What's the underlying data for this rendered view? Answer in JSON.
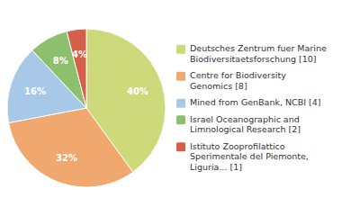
{
  "chart_data": {
    "type": "pie",
    "categories": [
      "Deutsches Zentrum fuer Marine\nBiodiversitaetsforschung [10]",
      "Centre for Biodiversity\nGenomics [8]",
      "Mined from GenBank, NCBI [4]",
      "Israel Oceanographic and\nLimnological Research [2]",
      "Istituto Zooprofilattico\nSperimentale del Piemonte,\nLiguria... [1]"
    ],
    "values": [
      40,
      32,
      16,
      8,
      4
    ],
    "value_labels": [
      "40%",
      "32%",
      "16%",
      "8%",
      "4%"
    ],
    "colors": [
      "#cdd97a",
      "#f0a86e",
      "#a8c8e8",
      "#8cbf6e",
      "#d4604a"
    ],
    "data_labels": true,
    "legend": "right"
  }
}
